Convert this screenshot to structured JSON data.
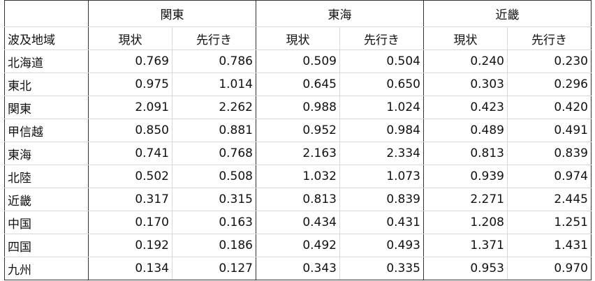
{
  "table": {
    "groups": [
      "関東",
      "東海",
      "近畿"
    ],
    "row_header": "波及地域",
    "subheaders": [
      "現状",
      "先行き",
      "現状",
      "先行き",
      "現状",
      "先行き"
    ],
    "rows": [
      [
        "北海道",
        "0.769",
        "0.786",
        "0.509",
        "0.504",
        "0.240",
        "0.230"
      ],
      [
        "東北",
        "0.975",
        "1.014",
        "0.645",
        "0.650",
        "0.303",
        "0.296"
      ],
      [
        "関東",
        "2.091",
        "2.262",
        "0.988",
        "1.024",
        "0.423",
        "0.420"
      ],
      [
        "甲信越",
        "0.850",
        "0.881",
        "0.952",
        "0.984",
        "0.489",
        "0.491"
      ],
      [
        "東海",
        "0.741",
        "0.768",
        "2.163",
        "2.334",
        "0.813",
        "0.839"
      ],
      [
        "北陸",
        "0.502",
        "0.508",
        "1.032",
        "1.073",
        "0.939",
        "0.974"
      ],
      [
        "近畿",
        "0.317",
        "0.315",
        "0.813",
        "0.839",
        "2.271",
        "2.445"
      ],
      [
        "中国",
        "0.170",
        "0.163",
        "0.434",
        "0.431",
        "1.208",
        "1.251"
      ],
      [
        "四国",
        "0.192",
        "0.186",
        "0.492",
        "0.493",
        "1.371",
        "1.431"
      ],
      [
        "九州",
        "0.134",
        "0.127",
        "0.343",
        "0.335",
        "0.953",
        "0.970"
      ]
    ]
  }
}
